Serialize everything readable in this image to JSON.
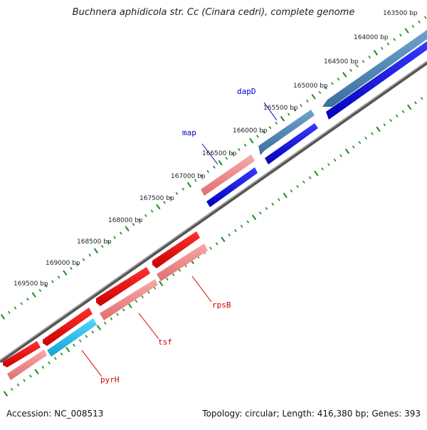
{
  "title": "Buchnera aphidicola str. Cc (Cinara cedri), complete genome",
  "footer": {
    "accession": "Accession: NC_008513",
    "summary": "Topology: circular; Length: 416,380 bp; Genes: 393"
  },
  "scale_ticks": [
    "163500 bp",
    "164000 bp",
    "164500 bp",
    "165000 bp",
    "165500 bp",
    "166000 bp",
    "166500 bp",
    "167000 bp",
    "167500 bp",
    "168000 bp",
    "168500 bp",
    "169000 bp",
    "169500 bp"
  ],
  "gene_labels": [
    "dapD",
    "map",
    "rpsB",
    "tsf",
    "pyrH"
  ],
  "colors": {
    "forward_cds": "#1010dd",
    "forward_rna": "#4a7fae",
    "reverse_cds": "#ee1111",
    "reverse_pink": "#f08a8a",
    "cyan_gene": "#22bbee",
    "backbone": "#777777",
    "tick_green": "#1a8a1a",
    "label_blue": "#0000cc",
    "label_red": "#cc0000"
  }
}
